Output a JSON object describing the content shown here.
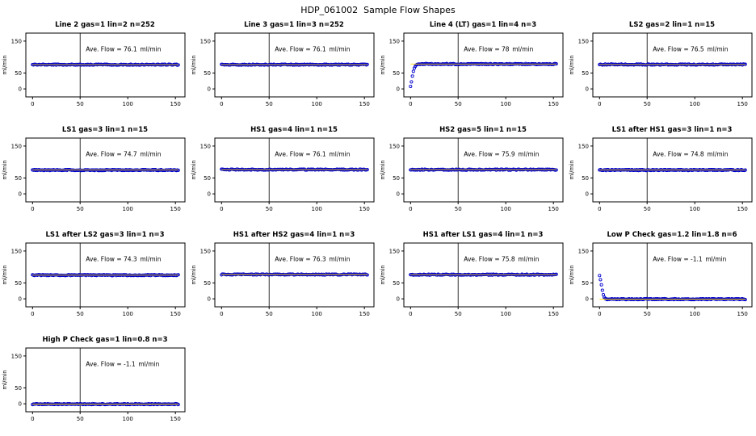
{
  "title": "HDP_061002  Sample Flow Shapes",
  "axes": {
    "x_ticks": [
      "0",
      "50",
      "100",
      "150"
    ],
    "y_ticks": [
      "0",
      "50",
      "150"
    ],
    "ylabel": "ml/min",
    "xlabel": "",
    "xlim": [
      -7,
      160
    ],
    "ylim": [
      -25,
      175
    ],
    "vertical_marker_x": 50,
    "grid": "off"
  },
  "annotation": {
    "prefix": "Ave. Flow =",
    "unit": "ml/min"
  },
  "colors": {
    "point": "#0000cc",
    "center_line": "#ffd700",
    "axis": "#000000",
    "background": "#ffffff"
  },
  "chart_data": [
    {
      "type": "scatter",
      "title": "Line 2 gas=1 lin=2 n=252",
      "ave_flow": "76.1",
      "steady": 76.1,
      "shape": "flat"
    },
    {
      "type": "scatter",
      "title": "Line 3 gas=1 lin=3 n=252",
      "ave_flow": "76.1",
      "steady": 76.1,
      "shape": "flat"
    },
    {
      "type": "scatter",
      "title": "Line 4 (LT) gas=1 lin=4 n=3",
      "ave_flow": "78",
      "steady": 78,
      "shape": "rise",
      "lead_in": [
        [
          0,
          8
        ],
        [
          1,
          22
        ],
        [
          2,
          40
        ],
        [
          3,
          55
        ],
        [
          4,
          65
        ],
        [
          5,
          71
        ],
        [
          6,
          75
        ]
      ]
    },
    {
      "type": "scatter",
      "title": "LS2 gas=2 lin=1 n=15",
      "ave_flow": "76.5",
      "steady": 76.5,
      "shape": "flat"
    },
    {
      "type": "scatter",
      "title": "LS1 gas=3 lin=1 n=15",
      "ave_flow": "74.7",
      "steady": 74.7,
      "shape": "flat"
    },
    {
      "type": "scatter",
      "title": "HS1 gas=4 lin=1 n=15",
      "ave_flow": "76.1",
      "steady": 76.1,
      "shape": "flat"
    },
    {
      "type": "scatter",
      "title": "HS2 gas=5 lin=1 n=15",
      "ave_flow": "75.9",
      "steady": 75.9,
      "shape": "flat"
    },
    {
      "type": "scatter",
      "title": "LS1 after HS1 gas=3 lin=1 n=3",
      "ave_flow": "74.8",
      "steady": 74.8,
      "shape": "flat"
    },
    {
      "type": "scatter",
      "title": "LS1 after LS2 gas=3 lin=1 n=3",
      "ave_flow": "74.3",
      "steady": 74.3,
      "shape": "flat"
    },
    {
      "type": "scatter",
      "title": "HS1 after HS2 gas=4 lin=1 n=3",
      "ave_flow": "76.3",
      "steady": 76.3,
      "shape": "flat"
    },
    {
      "type": "scatter",
      "title": "HS1 after LS1 gas=4 lin=1 n=3",
      "ave_flow": "75.8",
      "steady": 75.8,
      "shape": "flat"
    },
    {
      "type": "scatter",
      "title": "Low P Check gas=1.2 lin=1.8 n=6",
      "ave_flow": "-1.1",
      "steady": -1,
      "shape": "drop",
      "lead_in": [
        [
          0,
          73
        ],
        [
          1,
          60
        ],
        [
          2,
          44
        ],
        [
          3,
          27
        ],
        [
          4,
          13
        ],
        [
          5,
          5
        ],
        [
          6,
          1
        ]
      ]
    },
    {
      "type": "scatter",
      "title": "High P Check gas=1 lin=0.8 n=3",
      "ave_flow": "-1.1",
      "steady": -1,
      "shape": "flat"
    }
  ]
}
